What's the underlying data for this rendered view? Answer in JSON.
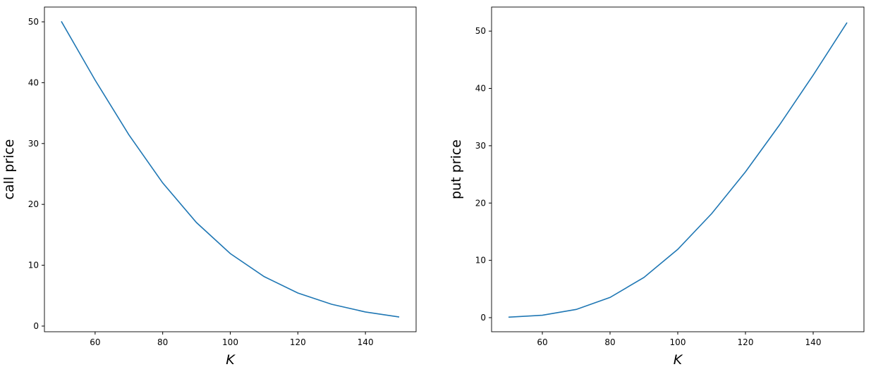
{
  "chart_data": [
    {
      "type": "line",
      "xlabel": "K",
      "ylabel": "call price",
      "x": [
        50,
        60,
        70,
        80,
        90,
        100,
        110,
        120,
        130,
        140,
        150
      ],
      "series": [
        {
          "color": "#1f77b4",
          "values": [
            50.08,
            40.42,
            31.43,
            23.53,
            17.01,
            11.92,
            8.14,
            5.44,
            3.58,
            2.32,
            1.49
          ]
        }
      ],
      "xlim": [
        45,
        155
      ],
      "xticks": [
        60,
        80,
        100,
        120,
        140
      ],
      "ylim": [
        -0.93,
        52.43
      ],
      "yticks": [
        0,
        10,
        20,
        30,
        40,
        50
      ]
    },
    {
      "type": "line",
      "xlabel": "K",
      "ylabel": "put price",
      "x": [
        50,
        60,
        70,
        80,
        90,
        100,
        110,
        120,
        130,
        140,
        150
      ],
      "series": [
        {
          "color": "#1f77b4",
          "values": [
            0.08,
            0.42,
            1.43,
            3.53,
            7.01,
            11.92,
            18.14,
            25.44,
            33.58,
            42.32,
            51.49
          ]
        }
      ],
      "xlim": [
        45,
        155
      ],
      "xticks": [
        60,
        80,
        100,
        120,
        140
      ],
      "ylim": [
        -2.46,
        54.2
      ],
      "yticks": [
        0,
        10,
        20,
        30,
        40,
        50
      ]
    }
  ]
}
